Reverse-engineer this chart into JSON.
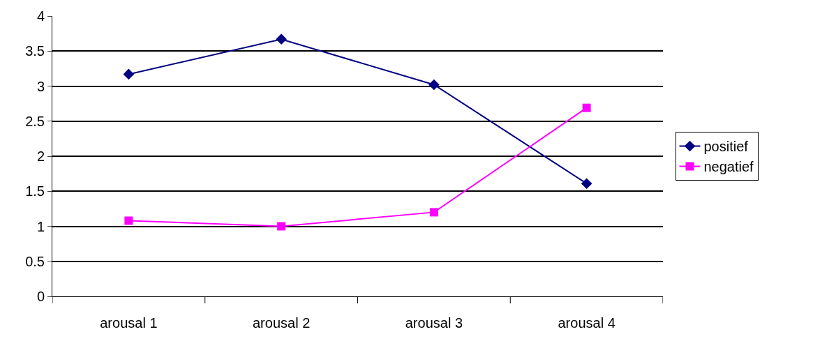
{
  "chart_data": {
    "type": "line",
    "categories": [
      "arousal 1",
      "arousal 2",
      "arousal 3",
      "arousal 4"
    ],
    "series": [
      {
        "name": "positief",
        "color": "#000080",
        "marker": "diamond",
        "values": [
          3.17,
          3.67,
          3.02,
          1.61
        ]
      },
      {
        "name": "negatief",
        "color": "#ff00ff",
        "marker": "square",
        "values": [
          1.08,
          1.0,
          1.2,
          2.69
        ]
      }
    ],
    "ylim": [
      0,
      4
    ],
    "yticks": [
      0,
      0.5,
      1,
      1.5,
      2,
      2.5,
      3,
      3.5,
      4
    ],
    "grid": "y",
    "legend": "right",
    "line_style": "solid"
  }
}
